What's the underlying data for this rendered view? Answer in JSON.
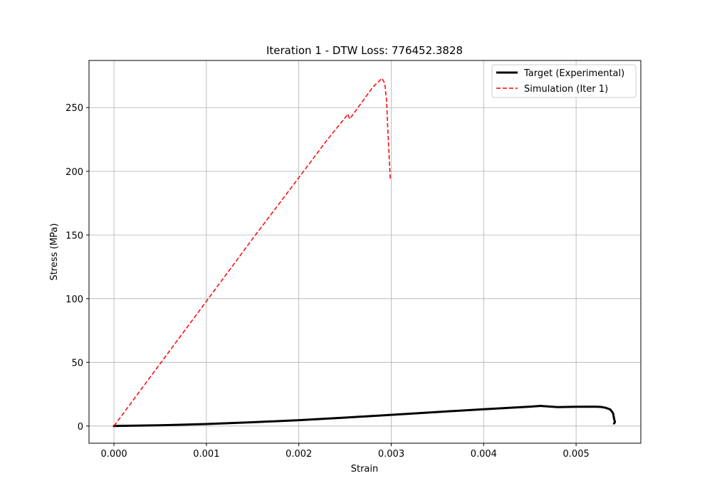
{
  "chart_data": {
    "type": "line",
    "title": "Iteration 1 - DTW Loss: 776452.3828",
    "xlabel": "Strain",
    "ylabel": "Stress (MPa)",
    "xlim": [
      -0.00027,
      0.0057
    ],
    "ylim": [
      -13.5,
      287
    ],
    "xticks": [
      0.0,
      0.001,
      0.002,
      0.003,
      0.004,
      0.005
    ],
    "xtick_labels": [
      "0.000",
      "0.001",
      "0.002",
      "0.003",
      "0.004",
      "0.005"
    ],
    "yticks": [
      0,
      50,
      100,
      150,
      200,
      250
    ],
    "ytick_labels": [
      "0",
      "50",
      "100",
      "150",
      "200",
      "250"
    ],
    "grid": true,
    "legend_position": "top-right",
    "series": [
      {
        "name": "Target (Experimental)",
        "color": "#000000",
        "style": "solid",
        "x": [
          0.0,
          0.0005,
          0.001,
          0.0015,
          0.002,
          0.0025,
          0.003,
          0.0035,
          0.004,
          0.0045,
          0.00462,
          0.00465,
          0.0048,
          0.005,
          0.0052,
          0.00527,
          0.00532,
          0.00537,
          0.0054,
          0.00541,
          0.00542,
          0.00541
        ],
        "y": [
          0.0,
          0.6,
          1.6,
          3.0,
          4.6,
          6.6,
          8.8,
          11.0,
          13.2,
          15.2,
          15.8,
          15.6,
          14.8,
          15.1,
          15.2,
          15.0,
          14.3,
          13.0,
          10.0,
          6.0,
          3.0,
          2.0
        ]
      },
      {
        "name": "Simulation (Iter 1)",
        "color": "#ff0000",
        "style": "dashed",
        "x": [
          0.0,
          0.0005,
          0.001,
          0.0015,
          0.002,
          0.0023,
          0.0025,
          0.00253,
          0.00255,
          0.0026,
          0.0027,
          0.0028,
          0.0029,
          0.00293,
          0.00295,
          0.00296,
          0.00297,
          0.00298,
          0.00299
        ],
        "y": [
          0.0,
          49.0,
          98.0,
          147.0,
          195.0,
          224.0,
          242.0,
          245.0,
          241.0,
          246.0,
          256.0,
          266.0,
          273.0,
          269.0,
          255.0,
          238.0,
          222.0,
          208.0,
          193.0
        ]
      }
    ]
  }
}
